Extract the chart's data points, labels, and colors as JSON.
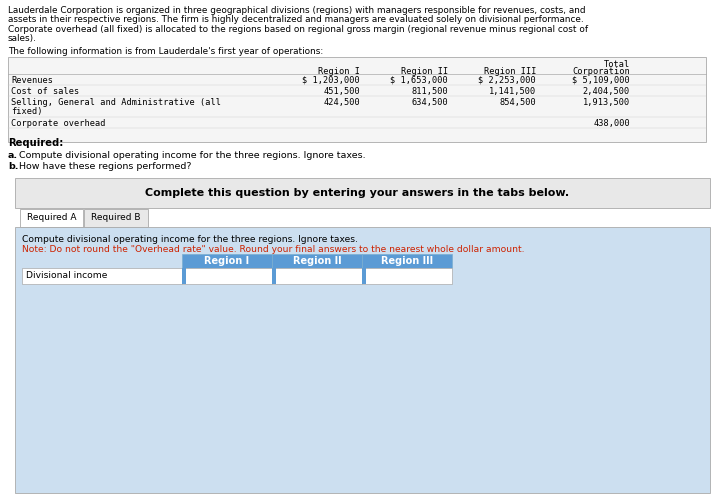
{
  "intro_lines": [
    "Lauderdale Corporation is organized in three geographical divisions (regions) with managers responsible for revenues, costs, and",
    "assets in their respective regions. The firm is highly decentralized and managers are evaluated solely on divisional performance.",
    "Corporate overhead (all fixed) is allocated to the regions based on regional gross margin (regional revenue minus regional cost of",
    "sales)."
  ],
  "following_text": "The following information is from Lauderdale's first year of operations:",
  "col_headers": [
    "Region I",
    "Region II",
    "Region III",
    "Total\nCorporation"
  ],
  "table_rows": [
    [
      "Revenues",
      "$ 1,203,000",
      "$ 1,653,000",
      "$ 2,253,000",
      "$ 5,109,000"
    ],
    [
      "Cost of sales",
      "451,500",
      "811,500",
      "1,141,500",
      "2,404,500"
    ],
    [
      "Selling, General and Administrative (all\nfixed)",
      "424,500",
      "634,500",
      "854,500",
      "1,913,500"
    ],
    [
      "Corporate overhead",
      "",
      "",
      "",
      "438,000"
    ]
  ],
  "required_text": "Required:",
  "req_a": "a. Compute divisional operating income for the three regions. Ignore taxes.",
  "req_b": "b. How have these regions performed?",
  "complete_text": "Complete this question by entering your answers in the tabs below.",
  "tab1": "Required A",
  "tab2": "Required B",
  "instruction1": "Compute divisional operating income for the three regions. Ignore taxes.",
  "instruction2": "Note: Do not round the \"Overhead rate\" value. Round your final answers to the nearest whole dollar amount.",
  "answer_headers": [
    "Region I",
    "Region II",
    "Region III"
  ],
  "answer_row_label": "Divisional income",
  "white": "#ffffff",
  "light_gray": "#e8e8e8",
  "light_blue_bg": "#ccdff0",
  "tab_area_bg": "#ccdff0",
  "header_blue": "#5b9bd5",
  "note_red": "#cc2200",
  "border_gray": "#aaaaaa",
  "table_bg": "#f5f5f5"
}
